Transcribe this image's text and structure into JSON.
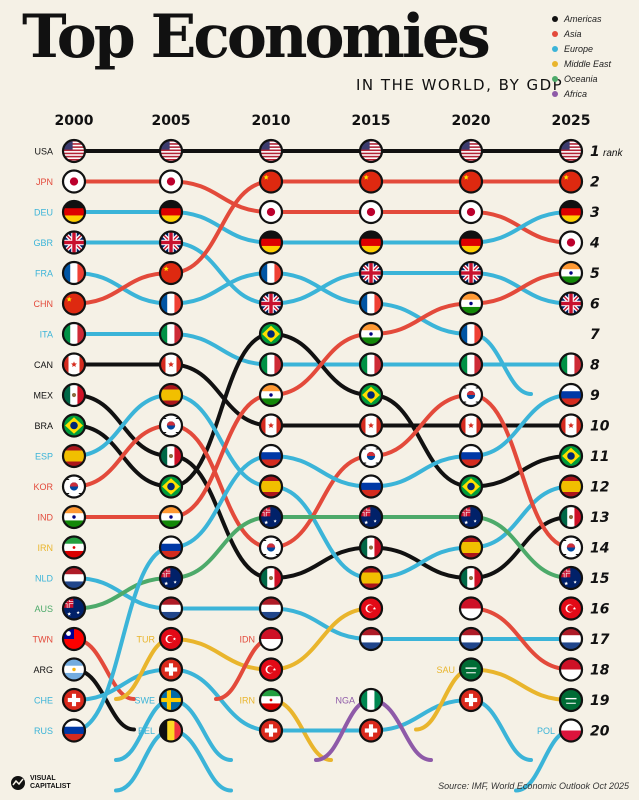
{
  "header": {
    "title": "Top Economies",
    "subtitle": "IN THE WORLD, BY GDP"
  },
  "legend": [
    {
      "label": "Americas",
      "color": "#111111"
    },
    {
      "label": "Asia",
      "color": "#e34a3b"
    },
    {
      "label": "Europe",
      "color": "#3bb4d8"
    },
    {
      "label": "Middle East",
      "color": "#e9b52c"
    },
    {
      "label": "Oceania",
      "color": "#4daa6a"
    },
    {
      "label": "Africa",
      "color": "#8e5aa8"
    }
  ],
  "footer": {
    "brand_line1": "VISUAL",
    "brand_line2": "CAPITALIST",
    "source": "Source: IMF, World Economic Outlook Oct 2025"
  },
  "chart_data": {
    "type": "bump",
    "x": [
      "2000",
      "2005",
      "2010",
      "2015",
      "2020",
      "2025"
    ],
    "rank_label": "rank",
    "ranks": [
      1,
      2,
      3,
      4,
      5,
      6,
      7,
      8,
      9,
      10,
      11,
      12,
      13,
      14,
      15,
      16,
      17,
      18,
      19,
      20
    ],
    "row_labels_2000": [
      "USA",
      "JPN",
      "DEU",
      "GBR",
      "FRA",
      "CHN",
      "ITA",
      "CAN",
      "MEX",
      "BRA",
      "ESP",
      "KOR",
      "IND",
      "IRN",
      "NLD",
      "AUS",
      "TWN",
      "ARG",
      "CHE",
      "RUS"
    ],
    "inline_labels": [
      {
        "text": "TUR",
        "year": "2005",
        "rank": 17
      },
      {
        "text": "SWE",
        "year": "2005",
        "rank": 19
      },
      {
        "text": "BEL",
        "year": "2005",
        "rank": 20
      },
      {
        "text": "IDN",
        "year": "2010",
        "rank": 17
      },
      {
        "text": "IRN",
        "year": "2010",
        "rank": 19
      },
      {
        "text": "NGA",
        "year": "2015",
        "rank": 19
      },
      {
        "text": "SAU",
        "year": "2020",
        "rank": 18
      },
      {
        "text": "POL",
        "year": "2025",
        "rank": 20
      }
    ],
    "series": [
      {
        "code": "USA",
        "region": "Americas",
        "flag": "us",
        "ranks": [
          1,
          1,
          1,
          1,
          1,
          1
        ]
      },
      {
        "code": "JPN",
        "region": "Asia",
        "flag": "jp",
        "ranks": [
          2,
          2,
          3,
          3,
          3,
          4
        ]
      },
      {
        "code": "DEU",
        "region": "Europe",
        "flag": "de",
        "ranks": [
          3,
          3,
          4,
          4,
          4,
          3
        ]
      },
      {
        "code": "GBR",
        "region": "Europe",
        "flag": "gb",
        "ranks": [
          4,
          4,
          6,
          5,
          5,
          6
        ]
      },
      {
        "code": "FRA",
        "region": "Europe",
        "flag": "fr",
        "ranks": [
          5,
          6,
          5,
          6,
          7,
          null
        ]
      },
      {
        "code": "CHN",
        "region": "Asia",
        "flag": "cn",
        "ranks": [
          6,
          5,
          2,
          2,
          2,
          2
        ]
      },
      {
        "code": "ITA",
        "region": "Europe",
        "flag": "it",
        "ranks": [
          7,
          7,
          8,
          8,
          8,
          8
        ]
      },
      {
        "code": "CAN",
        "region": "Americas",
        "flag": "ca",
        "ranks": [
          8,
          8,
          10,
          10,
          10,
          10
        ]
      },
      {
        "code": "MEX",
        "region": "Americas",
        "flag": "mx",
        "ranks": [
          9,
          11,
          15,
          14,
          15,
          13
        ]
      },
      {
        "code": "BRA",
        "region": "Americas",
        "flag": "br",
        "ranks": [
          10,
          12,
          7,
          9,
          12,
          11
        ]
      },
      {
        "code": "ESP",
        "region": "Europe",
        "flag": "es",
        "ranks": [
          11,
          9,
          12,
          15,
          14,
          12
        ]
      },
      {
        "code": "KOR",
        "region": "Asia",
        "flag": "kr",
        "ranks": [
          12,
          10,
          14,
          11,
          9,
          14
        ]
      },
      {
        "code": "IND",
        "region": "Asia",
        "flag": "in",
        "ranks": [
          13,
          13,
          9,
          7,
          6,
          5
        ]
      },
      {
        "code": "IRN",
        "region": "Middle East",
        "flag": "ir",
        "ranks": [
          14,
          null,
          19,
          null,
          null,
          null
        ]
      },
      {
        "code": "NLD",
        "region": "Europe",
        "flag": "nl",
        "ranks": [
          15,
          16,
          16,
          17,
          17,
          17
        ]
      },
      {
        "code": "AUS",
        "region": "Oceania",
        "flag": "au",
        "ranks": [
          16,
          15,
          13,
          13,
          13,
          15
        ]
      },
      {
        "code": "TWN",
        "region": "Asia",
        "flag": "tw",
        "ranks": [
          17,
          null,
          null,
          null,
          null,
          null
        ]
      },
      {
        "code": "ARG",
        "region": "Americas",
        "flag": "ar",
        "ranks": [
          18,
          null,
          null,
          null,
          null,
          null
        ]
      },
      {
        "code": "CHE",
        "region": "Europe",
        "flag": "ch",
        "ranks": [
          19,
          18,
          20,
          20,
          19,
          null
        ]
      },
      {
        "code": "RUS",
        "region": "Europe",
        "flag": "ru",
        "ranks": [
          20,
          14,
          11,
          12,
          11,
          9
        ]
      },
      {
        "code": "TUR",
        "region": "Middle East",
        "flag": "tr",
        "ranks": [
          null,
          17,
          18,
          16,
          null,
          16
        ]
      },
      {
        "code": "SWE",
        "region": "Europe",
        "flag": "se",
        "ranks": [
          null,
          19,
          null,
          null,
          null,
          null
        ]
      },
      {
        "code": "BEL",
        "region": "Europe",
        "flag": "be",
        "ranks": [
          null,
          20,
          null,
          null,
          null,
          null
        ]
      },
      {
        "code": "IDN",
        "region": "Asia",
        "flag": "id",
        "ranks": [
          null,
          null,
          17,
          null,
          16,
          18
        ]
      },
      {
        "code": "NGA",
        "region": "Africa",
        "flag": "ng",
        "ranks": [
          null,
          null,
          null,
          19,
          null,
          null
        ]
      },
      {
        "code": "SAU",
        "region": "Middle East",
        "flag": "sa",
        "ranks": [
          null,
          null,
          null,
          null,
          18,
          19
        ]
      },
      {
        "code": "POL",
        "region": "Europe",
        "flag": "pl",
        "ranks": [
          null,
          null,
          null,
          null,
          null,
          20
        ]
      }
    ]
  }
}
